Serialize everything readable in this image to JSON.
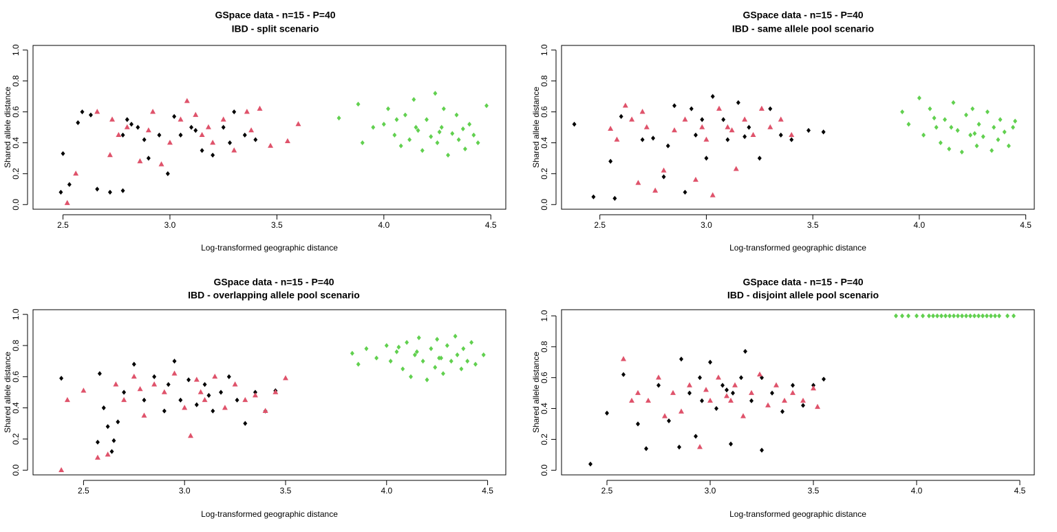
{
  "chart_data": [
    {
      "type": "scatter",
      "title": "GSpace data - n=15 - P=40",
      "subtitle": "IBD - split scenario",
      "xlabel": "Log-transformed geographic distance",
      "ylabel": "Shared allele distance",
      "xlim": [
        2.36,
        4.57
      ],
      "ylim": [
        -0.03,
        1.03
      ],
      "xticks": [
        2.5,
        {
          "value": 3,
          "label": "3.0"
        },
        3.5,
        {
          "value": 4,
          "label": "4.0"
        },
        4.5
      ],
      "yticks": [
        {
          "value": 0,
          "label": "0.0"
        },
        0.2,
        0.4,
        0.6,
        0.8,
        {
          "value": 1,
          "label": "1.0"
        }
      ],
      "series": [
        {
          "color": "#000000",
          "marker": "diamond",
          "x": [
            2.49,
            2.5,
            2.53,
            2.57,
            2.59,
            2.63,
            2.66,
            2.72,
            2.78,
            2.78,
            2.8,
            2.85,
            2.9,
            2.95,
            2.99,
            3.02,
            3.1,
            3.15,
            3.2,
            3.25,
            3.3,
            3.35,
            3.4,
            2.88,
            3.05,
            2.82,
            3.12,
            3.28
          ],
          "values": [
            0.08,
            0.33,
            0.13,
            0.53,
            0.6,
            0.58,
            0.1,
            0.08,
            0.09,
            0.45,
            0.55,
            0.5,
            0.3,
            0.45,
            0.2,
            0.57,
            0.5,
            0.35,
            0.32,
            0.5,
            0.6,
            0.45,
            0.42,
            0.42,
            0.45,
            0.52,
            0.48,
            0.4
          ]
        },
        {
          "color": "#DF536B",
          "marker": "triangle",
          "x": [
            2.52,
            2.56,
            2.66,
            2.72,
            2.73,
            2.8,
            2.86,
            2.92,
            2.96,
            3.0,
            3.05,
            3.08,
            3.12,
            3.15,
            3.2,
            3.25,
            3.3,
            3.36,
            3.42,
            3.47,
            3.55,
            3.6,
            2.9,
            3.18,
            2.76,
            3.38
          ],
          "values": [
            0.01,
            0.2,
            0.6,
            0.32,
            0.55,
            0.5,
            0.28,
            0.6,
            0.26,
            0.4,
            0.55,
            0.67,
            0.58,
            0.45,
            0.4,
            0.55,
            0.35,
            0.6,
            0.62,
            0.38,
            0.41,
            0.52,
            0.48,
            0.5,
            0.45,
            0.48
          ]
        },
        {
          "color": "#61D04F",
          "marker": "diamond",
          "x": [
            3.79,
            3.88,
            3.9,
            3.95,
            4.0,
            4.02,
            4.05,
            4.08,
            4.1,
            4.12,
            4.14,
            4.16,
            4.18,
            4.2,
            4.22,
            4.24,
            4.25,
            4.27,
            4.28,
            4.3,
            4.32,
            4.34,
            4.35,
            4.37,
            4.38,
            4.4,
            4.42,
            4.44,
            4.48,
            4.15,
            4.26,
            4.06
          ],
          "values": [
            0.56,
            0.65,
            0.4,
            0.5,
            0.52,
            0.62,
            0.45,
            0.38,
            0.58,
            0.42,
            0.68,
            0.48,
            0.35,
            0.55,
            0.44,
            0.72,
            0.4,
            0.5,
            0.62,
            0.32,
            0.46,
            0.58,
            0.42,
            0.49,
            0.36,
            0.52,
            0.45,
            0.4,
            0.64,
            0.5,
            0.47,
            0.55
          ]
        }
      ]
    },
    {
      "type": "scatter",
      "title": "GSpace data - n=15 - P=40",
      "subtitle": "IBD - same allele pool scenario",
      "xlabel": "Log-transformed geographic distance",
      "ylabel": "Shared allele distance",
      "xlim": [
        2.32,
        4.54
      ],
      "ylim": [
        -0.03,
        1.03
      ],
      "xticks": [
        2.5,
        {
          "value": 3,
          "label": "3.0"
        },
        3.5,
        {
          "value": 4,
          "label": "4.0"
        },
        4.5
      ],
      "yticks": [
        {
          "value": 0,
          "label": "0.0"
        },
        0.2,
        0.4,
        0.6,
        0.8,
        {
          "value": 1,
          "label": "1.0"
        }
      ],
      "series": [
        {
          "color": "#000000",
          "marker": "diamond",
          "x": [
            2.38,
            2.47,
            2.55,
            2.57,
            2.6,
            2.7,
            2.75,
            2.8,
            2.82,
            2.85,
            2.9,
            2.93,
            2.95,
            3.0,
            3.03,
            3.08,
            3.1,
            3.15,
            3.2,
            3.25,
            3.3,
            3.35,
            3.4,
            3.48,
            3.55,
            2.98,
            3.18
          ],
          "values": [
            0.52,
            0.05,
            0.28,
            0.04,
            0.57,
            0.42,
            0.43,
            0.18,
            0.38,
            0.64,
            0.08,
            0.62,
            0.45,
            0.3,
            0.7,
            0.55,
            0.42,
            0.66,
            0.5,
            0.3,
            0.62,
            0.45,
            0.42,
            0.48,
            0.47,
            0.55,
            0.44
          ]
        },
        {
          "color": "#DF536B",
          "marker": "triangle",
          "x": [
            2.55,
            2.58,
            2.62,
            2.65,
            2.68,
            2.72,
            2.76,
            2.8,
            2.85,
            2.9,
            2.95,
            3.0,
            3.03,
            3.06,
            3.1,
            3.14,
            3.18,
            3.22,
            3.26,
            3.3,
            3.35,
            3.4,
            2.7,
            2.98,
            3.12
          ],
          "values": [
            0.49,
            0.42,
            0.64,
            0.55,
            0.14,
            0.5,
            0.09,
            0.22,
            0.48,
            0.55,
            0.16,
            0.42,
            0.06,
            0.62,
            0.5,
            0.23,
            0.55,
            0.45,
            0.62,
            0.5,
            0.55,
            0.45,
            0.6,
            0.5,
            0.48
          ]
        },
        {
          "color": "#61D04F",
          "marker": "diamond",
          "x": [
            3.92,
            3.95,
            4.0,
            4.02,
            4.05,
            4.08,
            4.1,
            4.12,
            4.14,
            4.16,
            4.18,
            4.2,
            4.22,
            4.24,
            4.25,
            4.27,
            4.28,
            4.3,
            4.32,
            4.34,
            4.35,
            4.37,
            4.38,
            4.4,
            4.42,
            4.44,
            4.45,
            4.15,
            4.26,
            4.07
          ],
          "values": [
            0.6,
            0.52,
            0.69,
            0.45,
            0.62,
            0.5,
            0.4,
            0.55,
            0.36,
            0.66,
            0.48,
            0.34,
            0.58,
            0.45,
            0.62,
            0.38,
            0.52,
            0.44,
            0.6,
            0.35,
            0.5,
            0.42,
            0.55,
            0.47,
            0.38,
            0.5,
            0.54,
            0.5,
            0.46,
            0.56
          ]
        }
      ]
    },
    {
      "type": "scatter",
      "title": "GSpace data - n=15 - P=40",
      "subtitle": "IBD - overlapping allele pool scenario",
      "xlabel": "Log-transformed geographic distance",
      "ylabel": "Shared allele distance",
      "xlim": [
        2.25,
        4.59
      ],
      "ylim": [
        -0.03,
        1.03
      ],
      "xticks": [
        2.5,
        {
          "value": 3,
          "label": "3.0"
        },
        3.5,
        {
          "value": 4,
          "label": "4.0"
        },
        4.5
      ],
      "yticks": [
        {
          "value": 0,
          "label": "0.0"
        },
        0.2,
        0.4,
        0.6,
        0.8,
        {
          "value": 1,
          "label": "1.0"
        }
      ],
      "series": [
        {
          "color": "#000000",
          "marker": "diamond",
          "x": [
            2.39,
            2.57,
            2.58,
            2.6,
            2.62,
            2.64,
            2.65,
            2.67,
            2.7,
            2.75,
            2.8,
            2.85,
            2.9,
            2.95,
            2.98,
            3.02,
            3.06,
            3.1,
            3.14,
            3.18,
            3.22,
            3.26,
            3.3,
            3.35,
            3.4,
            3.45,
            2.92,
            3.12
          ],
          "values": [
            0.59,
            0.18,
            0.62,
            0.4,
            0.28,
            0.12,
            0.19,
            0.31,
            0.5,
            0.68,
            0.45,
            0.6,
            0.38,
            0.7,
            0.45,
            0.58,
            0.42,
            0.55,
            0.38,
            0.5,
            0.6,
            0.45,
            0.3,
            0.5,
            0.38,
            0.51,
            0.55,
            0.48
          ]
        },
        {
          "color": "#DF536B",
          "marker": "triangle",
          "x": [
            2.39,
            2.42,
            2.5,
            2.57,
            2.62,
            2.66,
            2.7,
            2.75,
            2.8,
            2.85,
            2.9,
            2.95,
            3.0,
            3.03,
            3.06,
            3.1,
            3.15,
            3.2,
            3.25,
            3.3,
            3.35,
            3.4,
            3.45,
            3.5,
            2.78,
            3.08
          ],
          "values": [
            0.0,
            0.45,
            0.51,
            0.08,
            0.1,
            0.55,
            0.45,
            0.6,
            0.35,
            0.55,
            0.5,
            0.62,
            0.4,
            0.22,
            0.58,
            0.45,
            0.6,
            0.4,
            0.55,
            0.45,
            0.48,
            0.38,
            0.5,
            0.59,
            0.52,
            0.5
          ]
        },
        {
          "color": "#61D04F",
          "marker": "diamond",
          "x": [
            3.83,
            3.86,
            3.9,
            3.95,
            4.0,
            4.02,
            4.05,
            4.08,
            4.1,
            4.12,
            4.14,
            4.16,
            4.18,
            4.2,
            4.22,
            4.24,
            4.25,
            4.27,
            4.28,
            4.3,
            4.32,
            4.34,
            4.35,
            4.37,
            4.38,
            4.4,
            4.42,
            4.44,
            4.48,
            4.15,
            4.26,
            4.06
          ],
          "values": [
            0.75,
            0.68,
            0.78,
            0.72,
            0.8,
            0.7,
            0.76,
            0.65,
            0.82,
            0.6,
            0.74,
            0.85,
            0.7,
            0.58,
            0.78,
            0.66,
            0.84,
            0.72,
            0.62,
            0.8,
            0.7,
            0.86,
            0.74,
            0.65,
            0.78,
            0.7,
            0.82,
            0.68,
            0.74,
            0.76,
            0.72,
            0.79
          ]
        }
      ]
    },
    {
      "type": "scatter",
      "title": "GSpace data - n=15 - P=40",
      "subtitle": "IBD - disjoint allele pool scenario",
      "xlabel": "Log-transformed geographic distance",
      "ylabel": "Shared allele distance",
      "xlim": [
        2.28,
        4.57
      ],
      "ylim": [
        -0.03,
        1.04
      ],
      "xticks": [
        2.5,
        {
          "value": 3,
          "label": "3.0"
        },
        3.5,
        {
          "value": 4,
          "label": "4.0"
        },
        4.5
      ],
      "yticks": [
        {
          "value": 0,
          "label": "0.0"
        },
        0.2,
        0.4,
        0.6,
        0.8,
        {
          "value": 1,
          "label": "1.0"
        }
      ],
      "series": [
        {
          "color": "#000000",
          "marker": "diamond",
          "x": [
            2.42,
            2.5,
            2.58,
            2.65,
            2.69,
            2.75,
            2.8,
            2.85,
            2.86,
            2.9,
            2.93,
            2.96,
            3.0,
            3.03,
            3.06,
            3.1,
            3.11,
            3.15,
            3.17,
            3.2,
            3.25,
            3.25,
            3.3,
            3.35,
            3.4,
            3.45,
            3.5,
            3.55,
            2.95,
            3.08
          ],
          "values": [
            0.04,
            0.37,
            0.62,
            0.3,
            0.14,
            0.55,
            0.32,
            0.15,
            0.72,
            0.5,
            0.22,
            0.45,
            0.7,
            0.4,
            0.55,
            0.17,
            0.5,
            0.6,
            0.77,
            0.45,
            0.13,
            0.6,
            0.5,
            0.38,
            0.55,
            0.42,
            0.55,
            0.59,
            0.6,
            0.52
          ]
        },
        {
          "color": "#DF536B",
          "marker": "triangle",
          "x": [
            2.58,
            2.62,
            2.65,
            2.7,
            2.75,
            2.78,
            2.82,
            2.86,
            2.9,
            2.95,
            3.0,
            3.04,
            3.08,
            3.12,
            3.16,
            3.2,
            3.24,
            3.28,
            3.32,
            3.36,
            3.4,
            3.45,
            3.5,
            3.52,
            3.1,
            2.98
          ],
          "values": [
            0.72,
            0.45,
            0.5,
            0.45,
            0.6,
            0.35,
            0.5,
            0.38,
            0.55,
            0.15,
            0.45,
            0.6,
            0.48,
            0.55,
            0.35,
            0.5,
            0.62,
            0.42,
            0.55,
            0.45,
            0.5,
            0.45,
            0.53,
            0.41,
            0.45,
            0.52
          ]
        },
        {
          "color": "#61D04F",
          "marker": "diamond",
          "x": [
            3.9,
            3.93,
            3.96,
            4.0,
            4.03,
            4.06,
            4.08,
            4.1,
            4.12,
            4.14,
            4.16,
            4.18,
            4.2,
            4.22,
            4.24,
            4.26,
            4.28,
            4.3,
            4.32,
            4.34,
            4.36,
            4.38,
            4.4,
            4.44,
            4.47
          ],
          "values": [
            1,
            1,
            1,
            1,
            1,
            1,
            1,
            1,
            1,
            1,
            1,
            1,
            1,
            1,
            1,
            1,
            1,
            1,
            1,
            1,
            1,
            1,
            1,
            1,
            1
          ]
        }
      ]
    }
  ]
}
